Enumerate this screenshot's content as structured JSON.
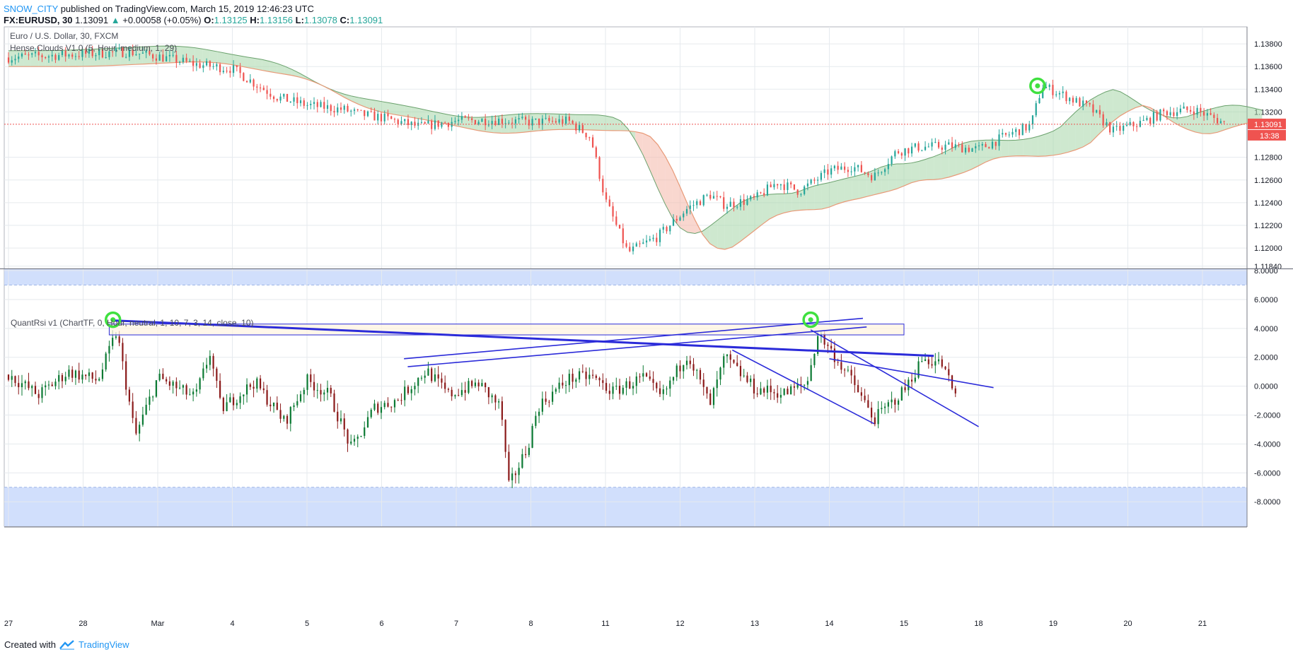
{
  "header": {
    "author": "SNOW_CITY",
    "published_text": "published on TradingView.com, March 15, 2019 12:46:23 UTC",
    "symbol": "FX:EURUSD, 30",
    "last": "1.13091",
    "change": "+0.00058 (+0.05%)",
    "o_label": "O:",
    "o": "1.13125",
    "h_label": "H:",
    "h": "1.13156",
    "l_label": "L:",
    "l": "1.13078",
    "c_label": "C:",
    "c": "1.13091"
  },
  "footer": {
    "created_with": "Created with",
    "brand": "TradingView"
  },
  "colors": {
    "up": "#26a69a",
    "down": "#ef5350",
    "rsi_up": "#0b7a33",
    "rsi_down": "#8b1a1a",
    "trend": "#2b2bd9",
    "grid": "#e6eaee",
    "band": "#c9d9fb",
    "price_line": "#ef5350"
  },
  "chart_data": [
    {
      "type": "candlestick",
      "pane": "price",
      "legend": [
        "Euro / U.S. Dollar, 30, FXCM",
        "Hense Clouds V1.0 (5, Hour, medium, 1, 29)"
      ],
      "y_ticks": [
        "1.13800",
        "1.13600",
        "1.13400",
        "1.13200",
        "1.12800",
        "1.12600",
        "1.12400",
        "1.12200",
        "1.12000",
        "1.11840"
      ],
      "ylim": [
        1.1182,
        1.1395
      ],
      "last_price_label": "1.13091",
      "countdown_label": "13:38",
      "last_price": 1.13091,
      "x_labels": [
        "27",
        "28",
        "Mar",
        "4",
        "5",
        "6",
        "7",
        "8",
        "11",
        "12",
        "13",
        "14",
        "15",
        "18",
        "19",
        "20",
        "21"
      ],
      "marker": {
        "x_index": 9.85,
        "value": 1.1343
      },
      "path": [
        [
          0,
          1.1368
        ],
        [
          1,
          1.1371
        ],
        [
          1.6,
          1.1373
        ],
        [
          2,
          1.1369
        ],
        [
          2.5,
          1.1362
        ],
        [
          3,
          1.1358
        ],
        [
          3.3,
          1.1345
        ],
        [
          3.6,
          1.1333
        ],
        [
          4,
          1.1326
        ],
        [
          4.5,
          1.1322
        ],
        [
          4.7,
          1.1318
        ],
        [
          5,
          1.1315
        ],
        [
          5.5,
          1.1307
        ],
        [
          6,
          1.1312
        ],
        [
          6.5,
          1.1313
        ],
        [
          7,
          1.1311
        ],
        [
          7.5,
          1.1312
        ],
        [
          7.8,
          1.1298
        ],
        [
          8,
          1.1242
        ],
        [
          8.3,
          1.1196
        ],
        [
          8.7,
          1.121
        ],
        [
          9.1,
          1.1235
        ],
        [
          9.4,
          1.1247
        ],
        [
          9.6,
          1.1238
        ],
        [
          10,
          1.1243
        ],
        [
          10.3,
          1.1258
        ],
        [
          10.6,
          1.125
        ],
        [
          11,
          1.1268
        ],
        [
          11.3,
          1.1272
        ],
        [
          11.6,
          1.1263
        ],
        [
          11.9,
          1.1285
        ],
        [
          12.2,
          1.1289
        ],
        [
          12.6,
          1.129
        ],
        [
          13,
          1.1287
        ],
        [
          13.4,
          1.13
        ],
        [
          13.7,
          1.1308
        ],
        [
          13.85,
          1.1343
        ],
        [
          14.1,
          1.1336
        ],
        [
          14.5,
          1.1323
        ],
        [
          14.8,
          1.1303
        ],
        [
          15.2,
          1.1311
        ],
        [
          15.5,
          1.132
        ],
        [
          15.9,
          1.1322
        ],
        [
          16.3,
          1.131
        ]
      ]
    },
    {
      "type": "candlestick",
      "pane": "indicator",
      "legend": [
        "QuantRsi v1 (ChartTF, 0, Hour, neutral, 1, 10, 7, 3, 14, close, 10)"
      ],
      "y_ticks": [
        "8.0000",
        "6.0000",
        "4.0000",
        "2.0000",
        "0.0000",
        "-2.0000",
        "-4.0000",
        "-6.0000",
        "-8.0000"
      ],
      "ylim": [
        -9.7,
        8.1
      ],
      "bands": [
        [
          7.0,
          8.1
        ],
        [
          -9.7,
          -7.0
        ]
      ],
      "markers": [
        {
          "x": 1.4,
          "value": 4.6
        },
        {
          "x": 10.75,
          "value": 4.6
        }
      ],
      "box": {
        "x1": 1.35,
        "x2": 12.0,
        "y1": 3.55,
        "y2": 4.3
      },
      "trendlines": [
        [
          [
            1.4,
            4.55
          ],
          [
            12.4,
            2.1
          ]
        ],
        [
          [
            5.3,
            1.9
          ],
          [
            11.45,
            4.7
          ]
        ],
        [
          [
            5.35,
            1.35
          ],
          [
            11.5,
            4.1
          ]
        ],
        [
          [
            10.75,
            3.9
          ],
          [
            13.0,
            -2.8
          ]
        ],
        [
          [
            9.7,
            2.5
          ],
          [
            11.6,
            -2.6
          ]
        ],
        [
          [
            11.0,
            1.9
          ],
          [
            13.2,
            -0.1
          ]
        ]
      ],
      "path": [
        [
          0,
          0.8
        ],
        [
          0.4,
          -0.6
        ],
        [
          0.8,
          1.0
        ],
        [
          1.2,
          0.4
        ],
        [
          1.45,
          3.8
        ],
        [
          1.7,
          -3.5
        ],
        [
          2.0,
          0.6
        ],
        [
          2.5,
          -0.8
        ],
        [
          2.7,
          2.3
        ],
        [
          2.85,
          -1.6
        ],
        [
          3.3,
          0.3
        ],
        [
          3.7,
          -2.5
        ],
        [
          4.0,
          0.4
        ],
        [
          4.3,
          -0.6
        ],
        [
          4.6,
          -4.4
        ],
        [
          4.9,
          -1.5
        ],
        [
          5.2,
          -1.0
        ],
        [
          5.6,
          1.1
        ],
        [
          5.9,
          -0.6
        ],
        [
          6.3,
          0.2
        ],
        [
          6.6,
          -1.5
        ],
        [
          6.7,
          -7.0
        ],
        [
          6.95,
          -4.3
        ],
        [
          7.1,
          -1.4
        ],
        [
          7.5,
          0.5
        ],
        [
          7.8,
          0.7
        ],
        [
          8.1,
          -0.4
        ],
        [
          8.5,
          0.6
        ],
        [
          8.75,
          -0.8
        ],
        [
          9.1,
          2.3
        ],
        [
          9.4,
          -1.3
        ],
        [
          9.6,
          2.0
        ],
        [
          10.0,
          -0.2
        ],
        [
          10.4,
          -0.5
        ],
        [
          10.7,
          0.2
        ],
        [
          10.85,
          3.7
        ],
        [
          11.3,
          0.4
        ],
        [
          11.6,
          -2.3
        ],
        [
          12.0,
          -0.3
        ],
        [
          12.25,
          1.9
        ],
        [
          12.5,
          1.6
        ],
        [
          12.7,
          -0.8
        ]
      ]
    }
  ]
}
